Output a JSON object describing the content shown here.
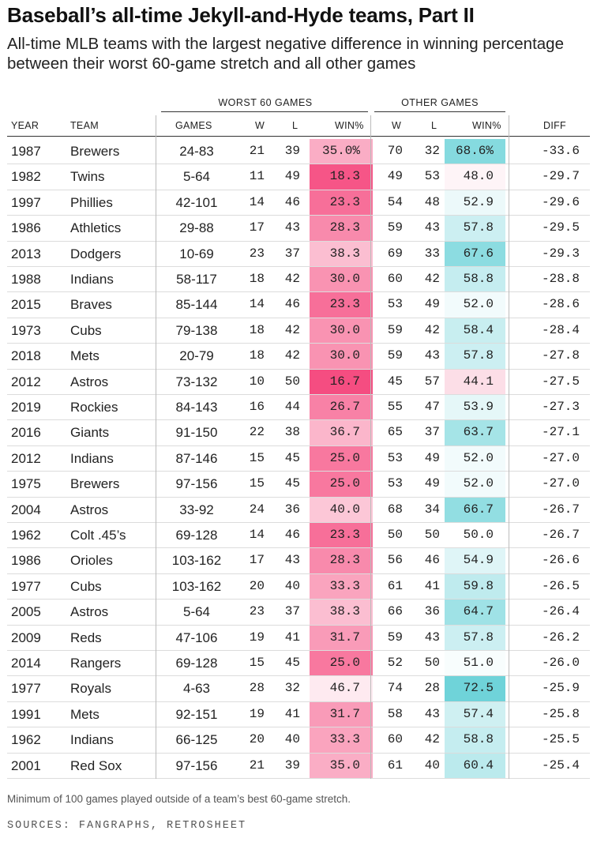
{
  "title": "Baseball’s all-time Jekyll-and-Hyde teams, Part II",
  "subtitle": "All-time MLB teams with the largest negative difference in winning percentage between their worst 60-game stretch and all other games",
  "groups": {
    "worst": "WORST 60 GAMES",
    "other": "OTHER GAMES"
  },
  "headers": {
    "year": "YEAR",
    "team": "TEAM",
    "games": "GAMES",
    "w": "W",
    "l": "L",
    "winpct": "WIN%",
    "ow": "W",
    "ol": "L",
    "owinpct": "WIN%",
    "diff": "DIFF"
  },
  "footnote": "Minimum of 100 games played outside of a team’s best 60-game stretch.",
  "sources": "SOURCES: FANGRAPHS, RETROSHEET",
  "colors": {
    "worst_scale": [
      "#fef1f5",
      "#f5497e"
    ],
    "other_scale": [
      "#fcdde7",
      "#ffffff",
      "#6fd3d9"
    ]
  },
  "chart_data": {
    "type": "table",
    "columns": [
      "YEAR",
      "TEAM",
      "GAMES",
      "W",
      "L",
      "WIN%",
      "W",
      "L",
      "WIN%",
      "DIFF"
    ],
    "rows": [
      [
        "1987",
        "Brewers",
        "24-83",
        "21",
        "39",
        "35.0%",
        "70",
        "32",
        "68.6%",
        "-33.6"
      ],
      [
        "1982",
        "Twins",
        "5-64",
        "11",
        "49",
        "18.3",
        "49",
        "53",
        "48.0",
        "-29.7"
      ],
      [
        "1997",
        "Phillies",
        "42-101",
        "14",
        "46",
        "23.3",
        "54",
        "48",
        "52.9",
        "-29.6"
      ],
      [
        "1986",
        "Athletics",
        "29-88",
        "17",
        "43",
        "28.3",
        "59",
        "43",
        "57.8",
        "-29.5"
      ],
      [
        "2013",
        "Dodgers",
        "10-69",
        "23",
        "37",
        "38.3",
        "69",
        "33",
        "67.6",
        "-29.3"
      ],
      [
        "1988",
        "Indians",
        "58-117",
        "18",
        "42",
        "30.0",
        "60",
        "42",
        "58.8",
        "-28.8"
      ],
      [
        "2015",
        "Braves",
        "85-144",
        "14",
        "46",
        "23.3",
        "53",
        "49",
        "52.0",
        "-28.6"
      ],
      [
        "1973",
        "Cubs",
        "79-138",
        "18",
        "42",
        "30.0",
        "59",
        "42",
        "58.4",
        "-28.4"
      ],
      [
        "2018",
        "Mets",
        "20-79",
        "18",
        "42",
        "30.0",
        "59",
        "43",
        "57.8",
        "-27.8"
      ],
      [
        "2012",
        "Astros",
        "73-132",
        "10",
        "50",
        "16.7",
        "45",
        "57",
        "44.1",
        "-27.5"
      ],
      [
        "2019",
        "Rockies",
        "84-143",
        "16",
        "44",
        "26.7",
        "55",
        "47",
        "53.9",
        "-27.3"
      ],
      [
        "2016",
        "Giants",
        "91-150",
        "22",
        "38",
        "36.7",
        "65",
        "37",
        "63.7",
        "-27.1"
      ],
      [
        "2012",
        "Indians",
        "87-146",
        "15",
        "45",
        "25.0",
        "53",
        "49",
        "52.0",
        "-27.0"
      ],
      [
        "1975",
        "Brewers",
        "97-156",
        "15",
        "45",
        "25.0",
        "53",
        "49",
        "52.0",
        "-27.0"
      ],
      [
        "2004",
        "Astros",
        "33-92",
        "24",
        "36",
        "40.0",
        "68",
        "34",
        "66.7",
        "-26.7"
      ],
      [
        "1962",
        "Colt .45’s",
        "69-128",
        "14",
        "46",
        "23.3",
        "50",
        "50",
        "50.0",
        "-26.7"
      ],
      [
        "1986",
        "Orioles",
        "103-162",
        "17",
        "43",
        "28.3",
        "56",
        "46",
        "54.9",
        "-26.6"
      ],
      [
        "1977",
        "Cubs",
        "103-162",
        "20",
        "40",
        "33.3",
        "61",
        "41",
        "59.8",
        "-26.5"
      ],
      [
        "2005",
        "Astros",
        "5-64",
        "23",
        "37",
        "38.3",
        "66",
        "36",
        "64.7",
        "-26.4"
      ],
      [
        "2009",
        "Reds",
        "47-106",
        "19",
        "41",
        "31.7",
        "59",
        "43",
        "57.8",
        "-26.2"
      ],
      [
        "2014",
        "Rangers",
        "69-128",
        "15",
        "45",
        "25.0",
        "52",
        "50",
        "51.0",
        "-26.0"
      ],
      [
        "1977",
        "Royals",
        "4-63",
        "28",
        "32",
        "46.7",
        "74",
        "28",
        "72.5",
        "-25.9"
      ],
      [
        "1991",
        "Mets",
        "92-151",
        "19",
        "41",
        "31.7",
        "58",
        "43",
        "57.4",
        "-25.8"
      ],
      [
        "1962",
        "Indians",
        "66-125",
        "20",
        "40",
        "33.3",
        "60",
        "42",
        "58.8",
        "-25.5"
      ],
      [
        "2001",
        "Red Sox",
        "97-156",
        "21",
        "39",
        "35.0",
        "61",
        "40",
        "60.4",
        "-25.4"
      ]
    ]
  }
}
